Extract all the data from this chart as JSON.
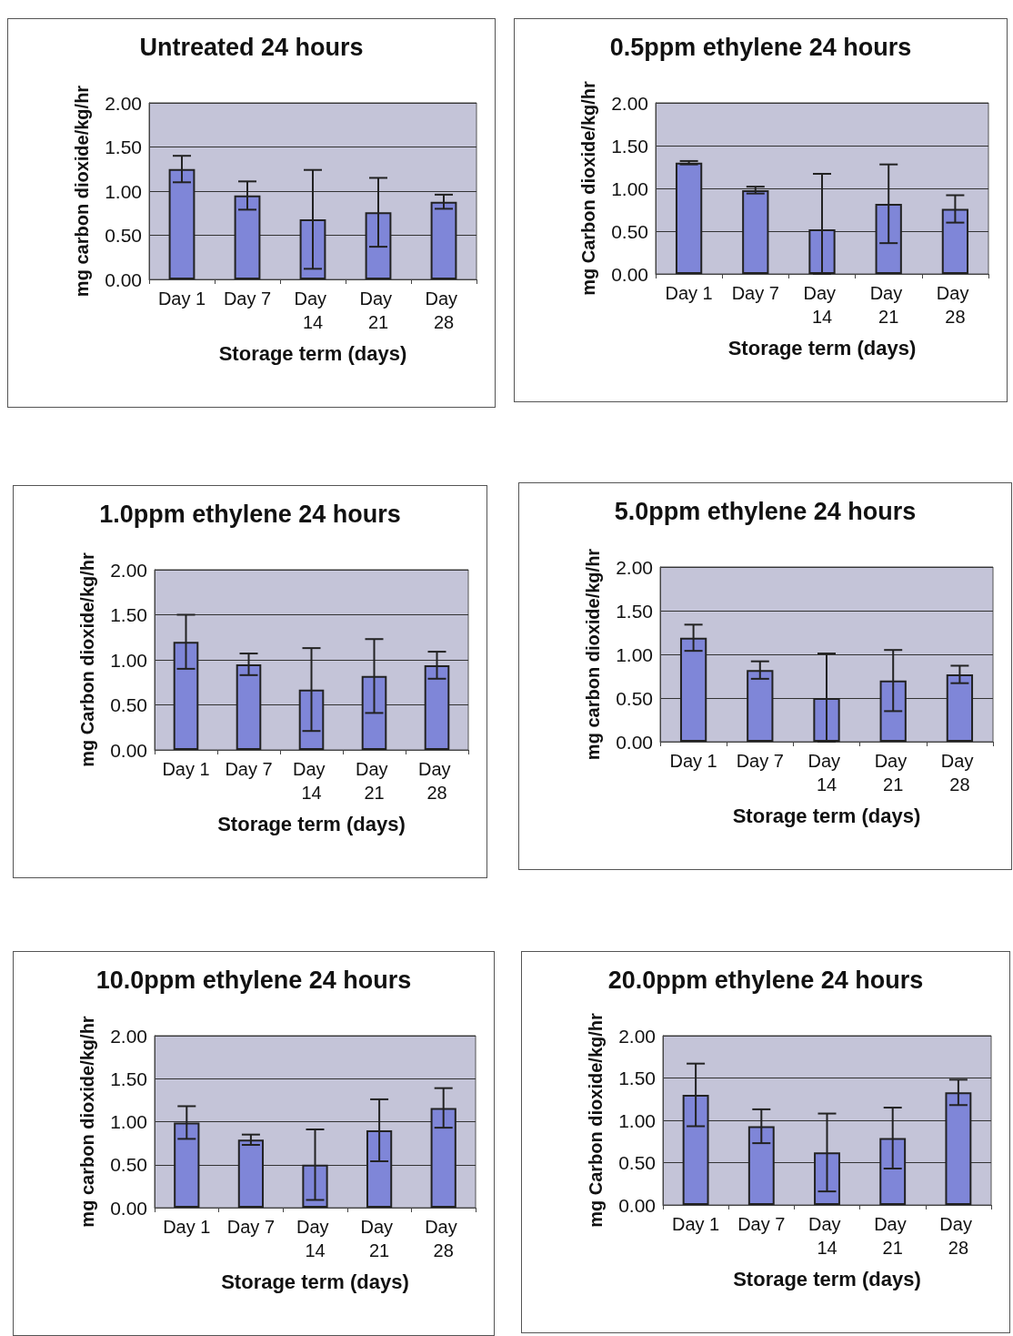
{
  "chart_data": [
    {
      "type": "bar",
      "title": "Untreated 24 hours",
      "xlabel": "Storage term (days)",
      "ylabel": "mg carbon dioxide/kg/hr",
      "categories": [
        "Day 1",
        "Day 7",
        "Day 14",
        "Day 21",
        "Day 28"
      ],
      "values": [
        1.25,
        0.95,
        0.68,
        0.76,
        0.88
      ],
      "errors": [
        0.15,
        0.16,
        0.56,
        0.39,
        0.08
      ],
      "color": "#7f86d8",
      "ylim": [
        0,
        2
      ],
      "yticks": [
        {
          "value": 0,
          "label": "0.00"
        },
        {
          "value": 0.5,
          "label": "0.50"
        },
        {
          "value": 1,
          "label": "1.00"
        },
        {
          "value": 1.5,
          "label": "1.50"
        },
        {
          "value": 2,
          "label": "2.00"
        }
      ],
      "grid": "y"
    },
    {
      "type": "bar",
      "title": "0.5ppm ethylene 24 hours",
      "xlabel": "Storage term (days)",
      "ylabel": "mg Carbon dioxide/kg/hr",
      "categories": [
        "Day 1",
        "Day 7",
        "Day 14",
        "Day 21",
        "Day 28"
      ],
      "values": [
        1.3,
        0.98,
        0.52,
        0.82,
        0.76
      ],
      "errors": [
        0.02,
        0.04,
        [
          0,
          1.17
        ],
        0.46,
        0.16
      ],
      "color": "#7f86d8",
      "ylim": [
        0,
        2
      ],
      "yticks": [
        {
          "value": 0,
          "label": "0.00"
        },
        {
          "value": 0.5,
          "label": "0.50"
        },
        {
          "value": 1,
          "label": "1.00"
        },
        {
          "value": 1.5,
          "label": "1.50"
        },
        {
          "value": 2,
          "label": "2.00"
        }
      ],
      "grid": "y"
    },
    {
      "type": "bar",
      "title": "1.0ppm ethylene 24 hours",
      "xlabel": "Storage term (days)",
      "ylabel": "mg Carbon dioxide/kg/hr",
      "categories": [
        "Day 1",
        "Day 7",
        "Day 14",
        "Day 21",
        "Day 28"
      ],
      "values": [
        1.2,
        0.95,
        0.67,
        0.82,
        0.94
      ],
      "errors": [
        0.3,
        0.12,
        0.46,
        0.41,
        0.15
      ],
      "color": "#7f86d8",
      "ylim": [
        0,
        2
      ],
      "yticks": [
        {
          "value": 0,
          "label": "0.00"
        },
        {
          "value": 0.5,
          "label": "0.50"
        },
        {
          "value": 1,
          "label": "1.00"
        },
        {
          "value": 1.5,
          "label": "1.50"
        },
        {
          "value": 2,
          "label": "2.00"
        }
      ],
      "grid": "y"
    },
    {
      "type": "bar",
      "title": "5.0ppm ethylene 24 hours",
      "xlabel": "Storage term (days)",
      "ylabel": "mg carbon dioxide/kg/hr",
      "categories": [
        "Day 1",
        "Day 7",
        "Day 14",
        "Day 21",
        "Day 28"
      ],
      "values": [
        1.19,
        0.82,
        0.5,
        0.7,
        0.77
      ],
      "errors": [
        0.15,
        0.1,
        [
          0,
          1.01
        ],
        0.35,
        0.1
      ],
      "color": "#7f86d8",
      "ylim": [
        0,
        2
      ],
      "yticks": [
        {
          "value": 0,
          "label": "0.00"
        },
        {
          "value": 0.5,
          "label": "0.50"
        },
        {
          "value": 1,
          "label": "1.00"
        },
        {
          "value": 1.5,
          "label": "1.50"
        },
        {
          "value": 2,
          "label": "2.00"
        }
      ],
      "grid": "y"
    },
    {
      "type": "bar",
      "title": "10.0ppm ethylene 24 hours",
      "xlabel": "Storage term (days)",
      "ylabel": "mg carbon dioxide/kg/hr",
      "categories": [
        "Day 1",
        "Day 7",
        "Day 14",
        "Day 21",
        "Day 28"
      ],
      "values": [
        0.99,
        0.79,
        0.5,
        0.9,
        1.16
      ],
      "errors": [
        0.19,
        0.06,
        0.41,
        0.36,
        0.23
      ],
      "color": "#7f86d8",
      "ylim": [
        0,
        2
      ],
      "yticks": [
        {
          "value": 0,
          "label": "0.00"
        },
        {
          "value": 0.5,
          "label": "0.50"
        },
        {
          "value": 1,
          "label": "1.00"
        },
        {
          "value": 1.5,
          "label": "1.50"
        },
        {
          "value": 2,
          "label": "2.00"
        }
      ],
      "grid": "y"
    },
    {
      "type": "bar",
      "title": "20.0ppm ethylene 24 hours",
      "xlabel": "Storage term (days)",
      "ylabel": "mg Carbon dioxide/kg/hr",
      "categories": [
        "Day 1",
        "Day 7",
        "Day 14",
        "Day 21",
        "Day 28"
      ],
      "values": [
        1.3,
        0.93,
        0.62,
        0.79,
        1.33
      ],
      "errors": [
        0.37,
        0.2,
        0.46,
        0.36,
        0.15
      ],
      "color": "#7f86d8",
      "ylim": [
        0,
        2
      ],
      "yticks": [
        {
          "value": 0,
          "label": "0.00"
        },
        {
          "value": 0.5,
          "label": "0.50"
        },
        {
          "value": 1,
          "label": "1.00"
        },
        {
          "value": 1.5,
          "label": "1.50"
        },
        {
          "value": 2,
          "label": "2.00"
        }
      ],
      "grid": "y"
    }
  ]
}
